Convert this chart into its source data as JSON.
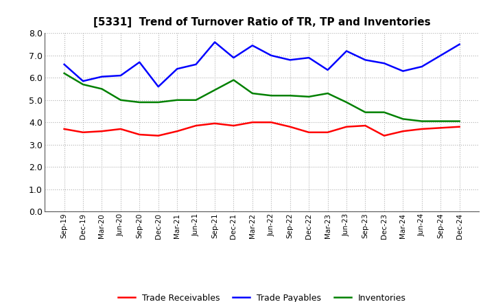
{
  "title": "[5331]  Trend of Turnover Ratio of TR, TP and Inventories",
  "x_labels": [
    "Sep-19",
    "Dec-19",
    "Mar-20",
    "Jun-20",
    "Sep-20",
    "Dec-20",
    "Mar-21",
    "Jun-21",
    "Sep-21",
    "Dec-21",
    "Mar-22",
    "Jun-22",
    "Sep-22",
    "Dec-22",
    "Mar-23",
    "Jun-23",
    "Sep-23",
    "Dec-23",
    "Mar-24",
    "Jun-24",
    "Sep-24",
    "Dec-24"
  ],
  "trade_receivables": [
    3.7,
    3.55,
    3.6,
    3.7,
    3.45,
    3.4,
    3.6,
    3.85,
    3.95,
    3.85,
    4.0,
    4.0,
    3.8,
    3.55,
    3.55,
    3.8,
    3.85,
    3.4,
    3.6,
    3.7,
    3.75,
    3.8
  ],
  "trade_payables": [
    6.6,
    5.85,
    6.05,
    6.1,
    6.7,
    5.6,
    6.4,
    6.6,
    7.6,
    6.9,
    7.45,
    7.0,
    6.8,
    6.9,
    6.35,
    7.2,
    6.8,
    6.65,
    6.3,
    6.5,
    7.0,
    7.5
  ],
  "inventories": [
    6.2,
    5.7,
    5.5,
    5.0,
    4.9,
    4.9,
    5.0,
    5.0,
    5.45,
    5.9,
    5.3,
    5.2,
    5.2,
    5.15,
    5.3,
    4.9,
    4.45,
    4.45,
    4.15,
    4.05,
    4.05,
    4.05
  ],
  "ylim": [
    0.0,
    8.0
  ],
  "yticks": [
    0.0,
    1.0,
    2.0,
    3.0,
    4.0,
    5.0,
    6.0,
    7.0,
    8.0
  ],
  "colors": {
    "trade_receivables": "#ff0000",
    "trade_payables": "#0000ff",
    "inventories": "#008000"
  },
  "legend_labels": [
    "Trade Receivables",
    "Trade Payables",
    "Inventories"
  ],
  "background_color": "#ffffff",
  "grid_color": "#b0b0b0"
}
